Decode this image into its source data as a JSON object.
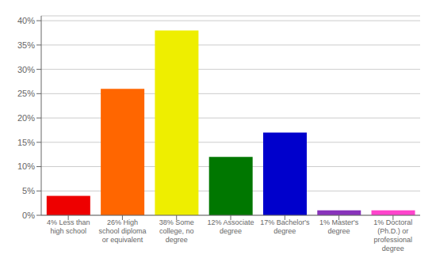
{
  "chart_data": {
    "type": "bar",
    "categories": [
      "4% Less than\nhigh school",
      "26% High\nschool diploma\nor equivalent",
      "38% Some\ncollege, no\ndegree",
      "12% Associate\ndegree",
      "17% Bachelor's\ndegree",
      "1% Master's\ndegree",
      "1% Doctoral\n(Ph.D.) or\nprofessional\ndegree"
    ],
    "values": [
      4,
      26,
      38,
      12,
      17,
      1,
      1
    ],
    "colors": [
      "#ee0000",
      "#ff6600",
      "#eeee00",
      "#007700",
      "#0000cc",
      "#8833bb",
      "#ff44cc"
    ],
    "ylim": [
      0,
      41
    ],
    "yticks": [
      {
        "value": 0,
        "label": "0%"
      },
      {
        "value": 5,
        "label": "5%"
      },
      {
        "value": 10,
        "label": "10%"
      },
      {
        "value": 15,
        "label": "15%"
      },
      {
        "value": 20,
        "label": "20%"
      },
      {
        "value": 25,
        "label": "25%"
      },
      {
        "value": 30,
        "label": "30%"
      },
      {
        "value": 35,
        "label": "35%"
      },
      {
        "value": 40,
        "label": "40%"
      }
    ],
    "grid": true
  }
}
